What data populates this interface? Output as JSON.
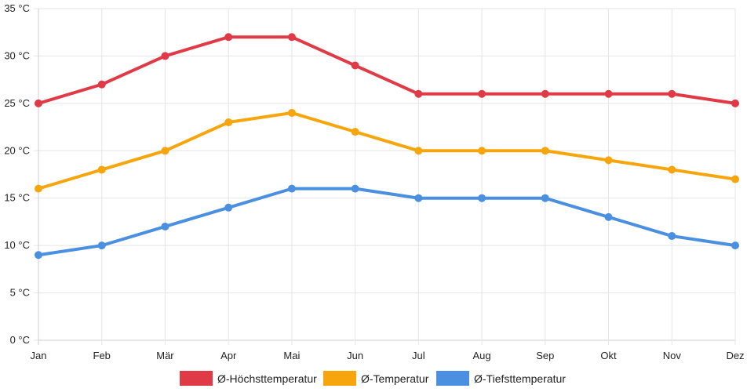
{
  "chart_data": {
    "type": "line",
    "categories": [
      "Jan",
      "Feb",
      "Mär",
      "Apr",
      "Mai",
      "Jun",
      "Jul",
      "Aug",
      "Sep",
      "Okt",
      "Nov",
      "Dez"
    ],
    "y_unit": "°C",
    "ylim": [
      0,
      35
    ],
    "y_ticks": [
      "0 °C",
      "5 °C",
      "10 °C",
      "15 °C",
      "20 °C",
      "25 °C",
      "30 °C",
      "35 °C"
    ],
    "grid": true,
    "legend_position": "bottom",
    "series": [
      {
        "name": "Ø-Höchsttemperatur",
        "color": "#e03a46",
        "values": [
          25,
          27,
          30,
          32,
          32,
          29,
          26,
          26,
          26,
          26,
          26,
          25
        ]
      },
      {
        "name": "Ø-Temperatur",
        "color": "#f6a50c",
        "values": [
          16,
          18,
          20,
          23,
          24,
          22,
          20,
          20,
          20,
          19,
          18,
          17
        ]
      },
      {
        "name": "Ø-Tiefsttemperatur",
        "color": "#4a8fe0",
        "values": [
          9,
          10,
          12,
          14,
          16,
          16,
          15,
          15,
          15,
          13,
          11,
          10
        ]
      }
    ]
  }
}
